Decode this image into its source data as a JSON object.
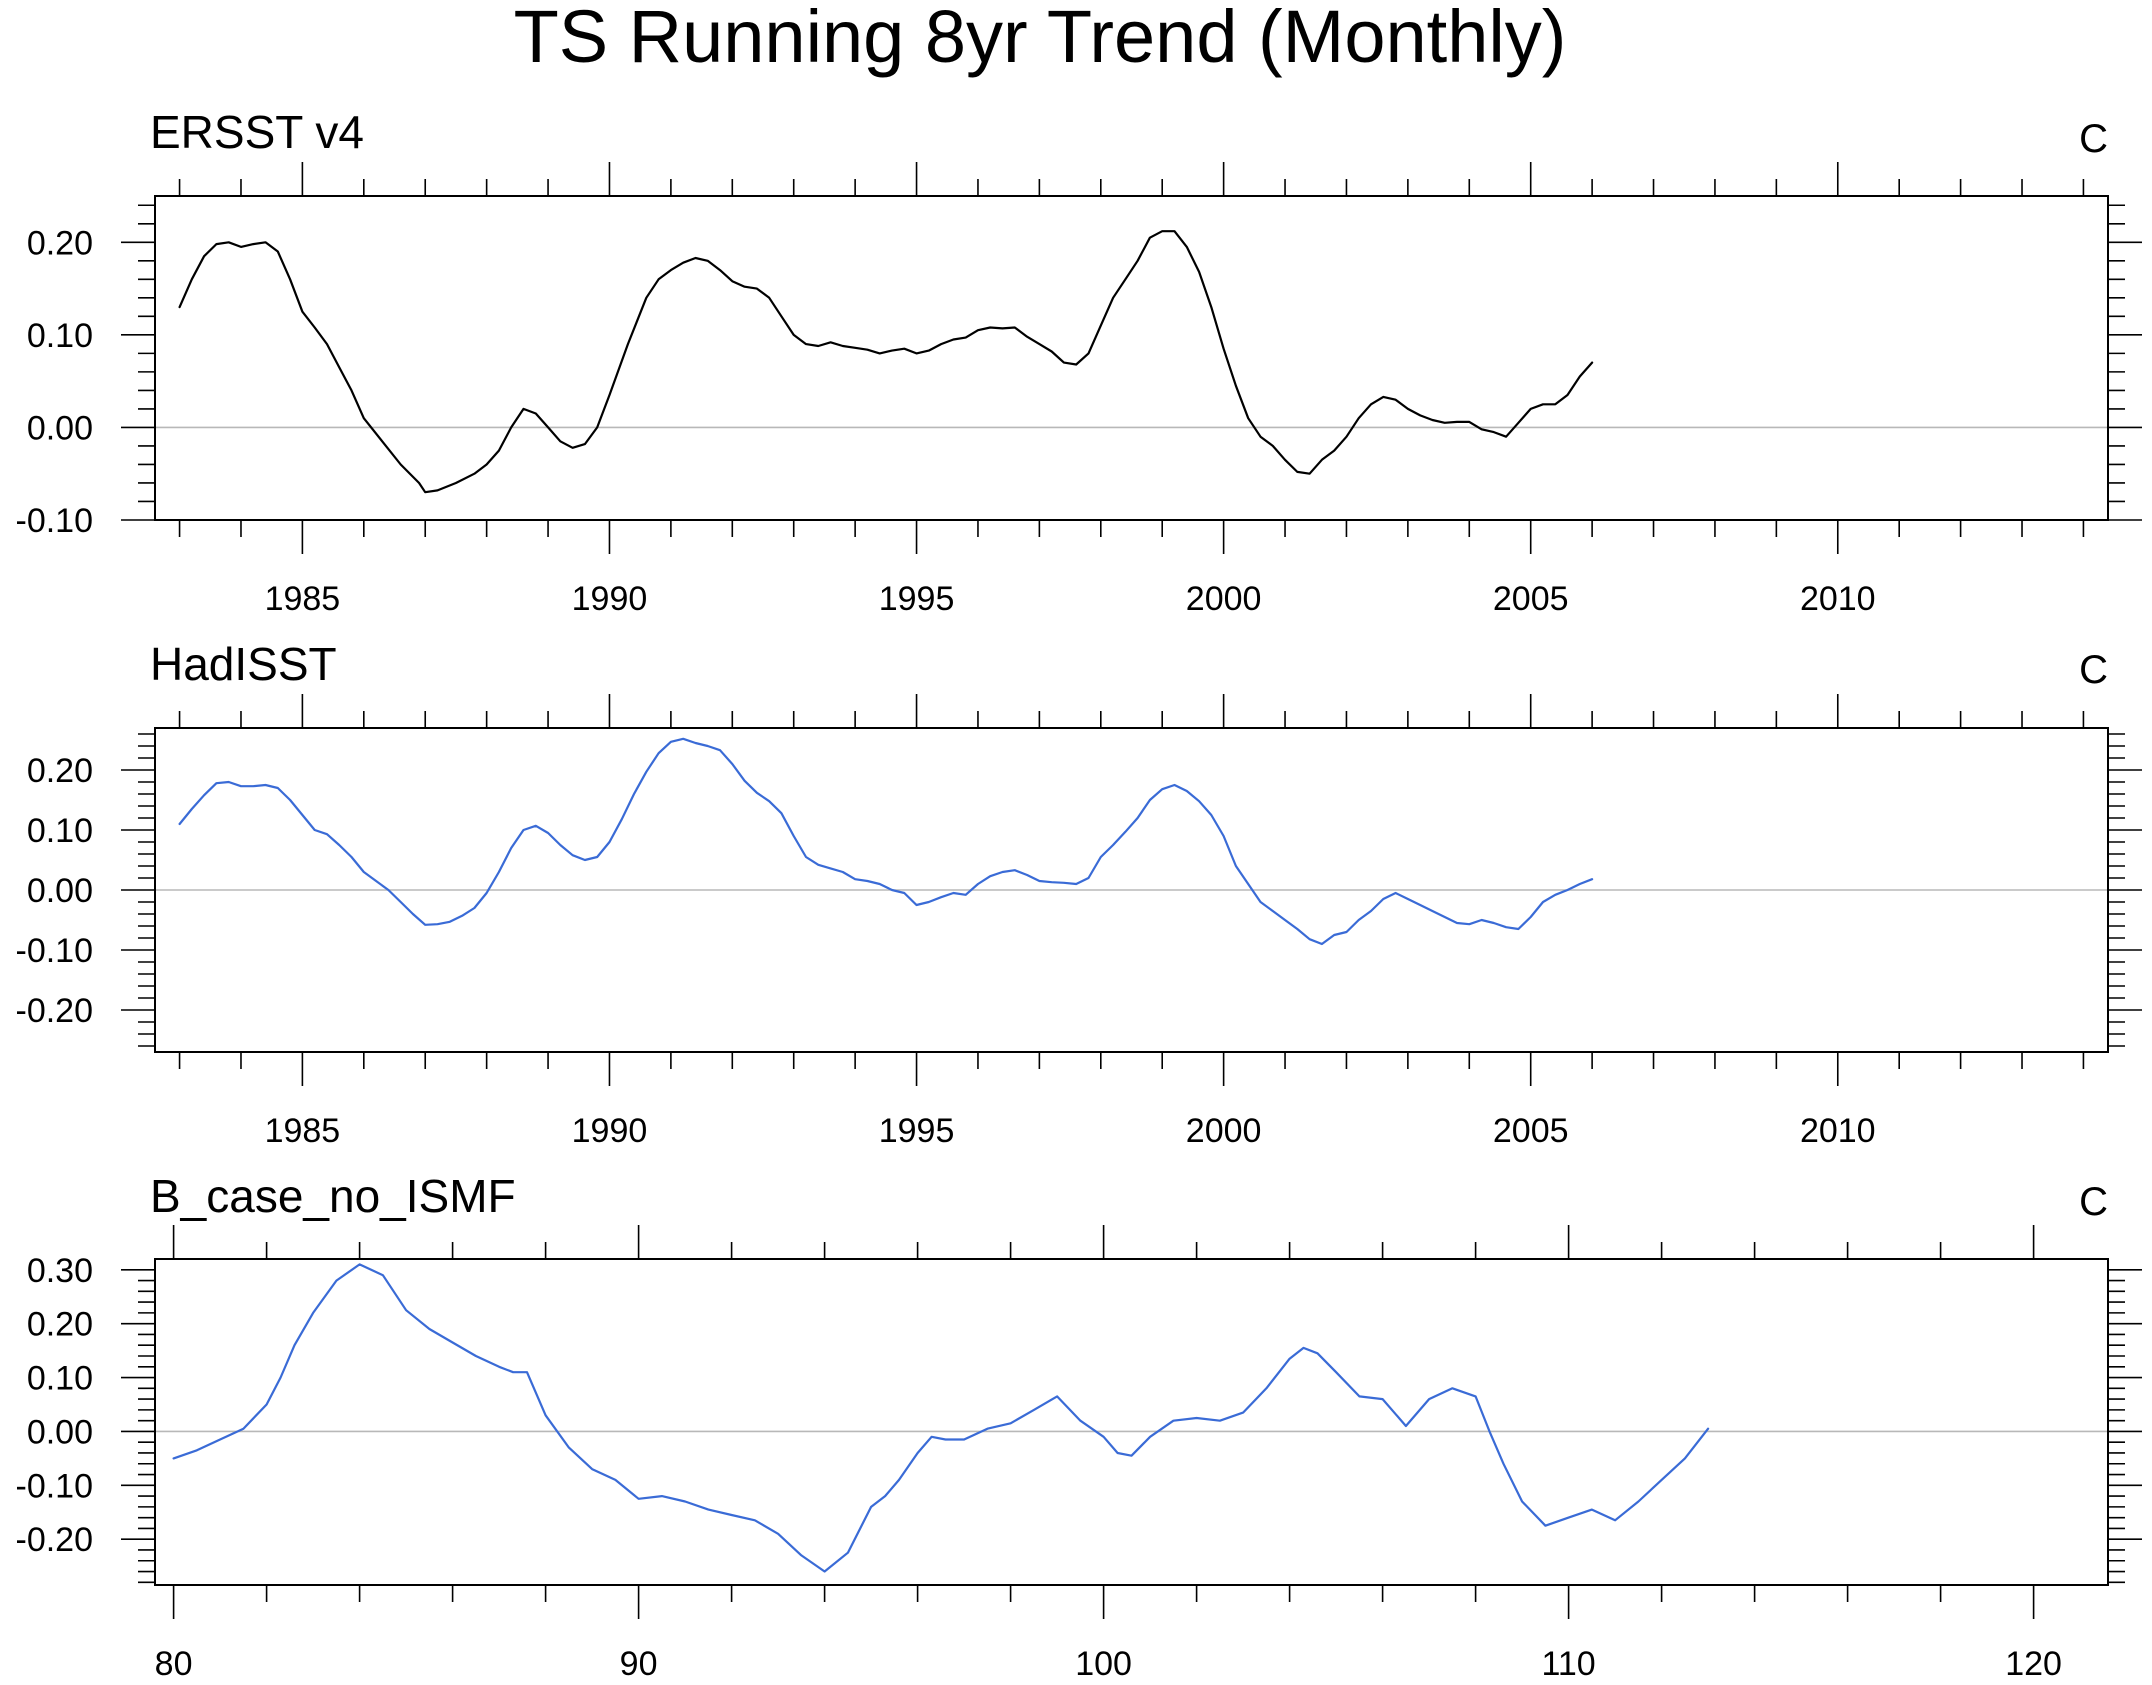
{
  "title": "TS Running 8yr Trend (Monthly)",
  "chart_data": [
    {
      "type": "line",
      "title": "ERSST v4",
      "units": "C",
      "xlim": [
        1982.6,
        2014.4
      ],
      "ylim": [
        -0.1,
        0.25
      ],
      "xticks": [
        1985,
        1990,
        1995,
        2000,
        2005,
        2010
      ],
      "xtick_labels": [
        "1985",
        "1990",
        "1995",
        "2000",
        "2005",
        "2010"
      ],
      "xminor": [
        1983,
        1984,
        1986,
        1987,
        1988,
        1989,
        1991,
        1992,
        1993,
        1994,
        1996,
        1997,
        1998,
        1999,
        2001,
        2002,
        2003,
        2004,
        2006,
        2007,
        2008,
        2009,
        2011,
        2012,
        2013,
        2014
      ],
      "yticks": [
        -0.1,
        0.0,
        0.1,
        0.2
      ],
      "ytick_labels": [
        "-0.10",
        "0.00",
        "0.10",
        "0.20"
      ],
      "yminor": [
        -0.08,
        -0.06,
        -0.04,
        -0.02,
        0.02,
        0.04,
        0.06,
        0.08,
        0.12,
        0.14,
        0.16,
        0.18,
        0.22,
        0.24
      ],
      "grid": false,
      "reference_line": 0,
      "series": [
        {
          "color": "#000000",
          "x": [
            1983.0,
            1983.2,
            1983.4,
            1983.6,
            1983.8,
            1984.0,
            1984.2,
            1984.4,
            1984.6,
            1984.8,
            1985.0,
            1985.2,
            1985.4,
            1985.6,
            1985.8,
            1986.0,
            1986.3,
            1986.6,
            1986.9,
            1987.0,
            1987.2,
            1987.5,
            1987.8,
            1988.0,
            1988.2,
            1988.4,
            1988.6,
            1988.8,
            1989.0,
            1989.2,
            1989.4,
            1989.6,
            1989.8,
            1990.0,
            1990.3,
            1990.6,
            1990.8,
            1991.0,
            1991.2,
            1991.4,
            1991.6,
            1991.8,
            1992.0,
            1992.2,
            1992.4,
            1992.6,
            1992.8,
            1993.0,
            1993.2,
            1993.4,
            1993.6,
            1993.8,
            1994.0,
            1994.2,
            1994.4,
            1994.6,
            1994.8,
            1995.0,
            1995.2,
            1995.4,
            1995.6,
            1995.8,
            1996.0,
            1996.2,
            1996.4,
            1996.6,
            1996.8,
            1997.0,
            1997.2,
            1997.4,
            1997.6,
            1997.8,
            1998.0,
            1998.2,
            1998.4,
            1998.6,
            1998.8,
            1999.0,
            1999.2,
            1999.4,
            1999.6,
            1999.8,
            2000.0,
            2000.2,
            2000.4,
            2000.6,
            2000.8,
            2001.0,
            2001.2,
            2001.4,
            2001.6,
            2001.8,
            2002.0,
            2002.2,
            2002.4,
            2002.6,
            2002.8,
            2003.0,
            2003.2,
            2003.4,
            2003.6,
            2003.8,
            2004.0,
            2004.2,
            2004.4,
            2004.6,
            2004.8,
            2005.0,
            2005.2,
            2005.4,
            2005.6,
            2005.8,
            2006.0
          ],
          "y": [
            0.13,
            0.16,
            0.185,
            0.198,
            0.2,
            0.195,
            0.198,
            0.2,
            0.19,
            0.16,
            0.125,
            0.108,
            0.09,
            0.065,
            0.04,
            0.01,
            -0.015,
            -0.04,
            -0.06,
            -0.07,
            -0.068,
            -0.06,
            -0.05,
            -0.04,
            -0.025,
            0.0,
            0.02,
            0.015,
            0.0,
            -0.015,
            -0.022,
            -0.018,
            0.0,
            0.035,
            0.09,
            0.14,
            0.16,
            0.17,
            0.178,
            0.183,
            0.18,
            0.17,
            0.158,
            0.152,
            0.15,
            0.14,
            0.12,
            0.1,
            0.09,
            0.088,
            0.092,
            0.088,
            0.086,
            0.084,
            0.08,
            0.083,
            0.085,
            0.08,
            0.083,
            0.09,
            0.095,
            0.097,
            0.105,
            0.108,
            0.107,
            0.108,
            0.098,
            0.09,
            0.082,
            0.07,
            0.068,
            0.08,
            0.11,
            0.14,
            0.16,
            0.18,
            0.205,
            0.212,
            0.212,
            0.195,
            0.168,
            0.13,
            0.085,
            0.045,
            0.01,
            -0.01,
            -0.02,
            -0.035,
            -0.048,
            -0.05,
            -0.035,
            -0.025,
            -0.01,
            0.01,
            0.025,
            0.033,
            0.03,
            0.02,
            0.013,
            0.008,
            0.005,
            0.006,
            0.006,
            -0.002,
            -0.005,
            -0.01,
            0.005,
            0.02,
            0.025,
            0.025,
            0.035,
            0.055,
            0.07
          ]
        }
      ]
    },
    {
      "type": "line",
      "title": "HadISST",
      "units": "C",
      "xlim": [
        1982.6,
        2014.4
      ],
      "ylim": [
        -0.27,
        0.27
      ],
      "xticks": [
        1985,
        1990,
        1995,
        2000,
        2005,
        2010
      ],
      "xtick_labels": [
        "1985",
        "1990",
        "1995",
        "2000",
        "2005",
        "2010"
      ],
      "xminor": [
        1983,
        1984,
        1986,
        1987,
        1988,
        1989,
        1991,
        1992,
        1993,
        1994,
        1996,
        1997,
        1998,
        1999,
        2001,
        2002,
        2003,
        2004,
        2006,
        2007,
        2008,
        2009,
        2011,
        2012,
        2013,
        2014
      ],
      "yticks": [
        -0.2,
        -0.1,
        0.0,
        0.1,
        0.2
      ],
      "ytick_labels": [
        "-0.20",
        "-0.10",
        "0.00",
        "0.10",
        "0.20"
      ],
      "yminor": [
        -0.26,
        -0.24,
        -0.22,
        -0.18,
        -0.16,
        -0.14,
        -0.12,
        -0.08,
        -0.06,
        -0.04,
        -0.02,
        0.02,
        0.04,
        0.06,
        0.08,
        0.12,
        0.14,
        0.16,
        0.18,
        0.22,
        0.24,
        0.26
      ],
      "grid": false,
      "reference_line": 0,
      "series": [
        {
          "color": "#3a6bd6",
          "x": [
            1983.0,
            1983.2,
            1983.4,
            1983.6,
            1983.8,
            1984.0,
            1984.2,
            1984.4,
            1984.6,
            1984.8,
            1985.0,
            1985.2,
            1985.4,
            1985.6,
            1985.8,
            1986.0,
            1986.2,
            1986.4,
            1986.6,
            1986.8,
            1987.0,
            1987.2,
            1987.4,
            1987.6,
            1987.8,
            1988.0,
            1988.2,
            1988.4,
            1988.6,
            1988.8,
            1989.0,
            1989.2,
            1989.4,
            1989.6,
            1989.8,
            1990.0,
            1990.2,
            1990.4,
            1990.6,
            1990.8,
            1991.0,
            1991.2,
            1991.4,
            1991.6,
            1991.8,
            1992.0,
            1992.2,
            1992.4,
            1992.6,
            1992.8,
            1993.0,
            1993.2,
            1993.4,
            1993.6,
            1993.8,
            1994.0,
            1994.2,
            1994.4,
            1994.6,
            1994.8,
            1995.0,
            1995.2,
            1995.4,
            1995.6,
            1995.8,
            1996.0,
            1996.2,
            1996.4,
            1996.6,
            1996.8,
            1997.0,
            1997.2,
            1997.4,
            1997.6,
            1997.8,
            1998.0,
            1998.2,
            1998.4,
            1998.6,
            1998.8,
            1999.0,
            1999.2,
            1999.4,
            1999.6,
            1999.8,
            2000.0,
            2000.2,
            2000.4,
            2000.6,
            2000.8,
            2001.0,
            2001.2,
            2001.4,
            2001.6,
            2001.8,
            2002.0,
            2002.2,
            2002.4,
            2002.6,
            2002.8,
            2003.0,
            2003.2,
            2003.4,
            2003.6,
            2003.8,
            2004.0,
            2004.2,
            2004.4,
            2004.6,
            2004.8,
            2005.0,
            2005.2,
            2005.4,
            2005.6,
            2005.8,
            2006.0
          ],
          "y": [
            0.11,
            0.135,
            0.158,
            0.178,
            0.18,
            0.173,
            0.173,
            0.175,
            0.17,
            0.15,
            0.125,
            0.1,
            0.093,
            0.075,
            0.055,
            0.03,
            0.015,
            0.0,
            -0.02,
            -0.04,
            -0.058,
            -0.057,
            -0.053,
            -0.043,
            -0.03,
            -0.005,
            0.03,
            0.07,
            0.1,
            0.107,
            0.095,
            0.075,
            0.058,
            0.05,
            0.055,
            0.08,
            0.118,
            0.16,
            0.197,
            0.228,
            0.247,
            0.252,
            0.245,
            0.24,
            0.233,
            0.21,
            0.182,
            0.162,
            0.148,
            0.128,
            0.09,
            0.055,
            0.042,
            0.036,
            0.03,
            0.018,
            0.015,
            0.01,
            0.0,
            -0.005,
            -0.025,
            -0.02,
            -0.012,
            -0.005,
            -0.008,
            0.01,
            0.023,
            0.03,
            0.033,
            0.025,
            0.015,
            0.013,
            0.012,
            0.01,
            0.02,
            0.055,
            0.075,
            0.097,
            0.12,
            0.15,
            0.168,
            0.175,
            0.165,
            0.148,
            0.125,
            0.09,
            0.04,
            0.01,
            -0.02,
            -0.035,
            -0.05,
            -0.065,
            -0.082,
            -0.09,
            -0.075,
            -0.07,
            -0.05,
            -0.035,
            -0.015,
            -0.005,
            -0.015,
            -0.025,
            -0.035,
            -0.045,
            -0.055,
            -0.057,
            -0.05,
            -0.055,
            -0.062,
            -0.065,
            -0.045,
            -0.02,
            -0.008,
            0.0,
            0.01,
            0.018
          ]
        }
      ]
    },
    {
      "type": "line",
      "title": "B_case_no_ISMF",
      "units": "C",
      "xlim": [
        79.6,
        121.6
      ],
      "ylim": [
        -0.285,
        0.32
      ],
      "xticks": [
        80,
        90,
        100,
        110,
        120
      ],
      "xtick_labels": [
        "80",
        "90",
        "100",
        "110",
        "120"
      ],
      "xminor": [
        82,
        84,
        86,
        88,
        92,
        94,
        96,
        98,
        102,
        104,
        106,
        108,
        112,
        114,
        116,
        118
      ],
      "yticks": [
        -0.2,
        -0.1,
        0.0,
        0.1,
        0.2,
        0.3
      ],
      "ytick_labels": [
        "-0.20",
        "-0.10",
        "0.00",
        "0.10",
        "0.20",
        "0.30"
      ],
      "yminor": [
        -0.28,
        -0.26,
        -0.24,
        -0.22,
        -0.18,
        -0.16,
        -0.14,
        -0.12,
        -0.08,
        -0.06,
        -0.04,
        -0.02,
        0.02,
        0.04,
        0.06,
        0.08,
        0.12,
        0.14,
        0.16,
        0.18,
        0.22,
        0.24,
        0.26,
        0.28
      ],
      "grid": false,
      "reference_line": 0,
      "series": [
        {
          "color": "#3a6bd6",
          "x": [
            80.0,
            80.5,
            81.0,
            81.5,
            82.0,
            82.3,
            82.6,
            83.0,
            83.5,
            84.0,
            84.5,
            85.0,
            85.5,
            86.0,
            86.5,
            87.0,
            87.3,
            87.6,
            88.0,
            88.5,
            89.0,
            89.5,
            90.0,
            90.5,
            91.0,
            91.5,
            92.0,
            92.5,
            93.0,
            93.5,
            94.0,
            94.5,
            95.0,
            95.3,
            95.6,
            96.0,
            96.3,
            96.6,
            97.0,
            97.5,
            98.0,
            98.5,
            99.0,
            99.5,
            100.0,
            100.3,
            100.6,
            101.0,
            101.5,
            102.0,
            102.5,
            103.0,
            103.5,
            104.0,
            104.3,
            104.6,
            105.0,
            105.5,
            106.0,
            106.5,
            107.0,
            107.5,
            108.0,
            108.3,
            108.6,
            109.0,
            109.5,
            110.0,
            110.5,
            111.0,
            111.5,
            112.0,
            112.5,
            113.0
          ],
          "y": [
            -0.05,
            -0.035,
            -0.015,
            0.005,
            0.05,
            0.1,
            0.16,
            0.22,
            0.28,
            0.31,
            0.29,
            0.225,
            0.19,
            0.165,
            0.14,
            0.12,
            0.11,
            0.11,
            0.03,
            -0.03,
            -0.07,
            -0.09,
            -0.125,
            -0.12,
            -0.13,
            -0.145,
            -0.155,
            -0.165,
            -0.19,
            -0.23,
            -0.26,
            -0.225,
            -0.14,
            -0.12,
            -0.09,
            -0.04,
            -0.01,
            -0.015,
            -0.015,
            0.005,
            0.015,
            0.04,
            0.065,
            0.02,
            -0.01,
            -0.04,
            -0.045,
            -0.01,
            0.02,
            0.025,
            0.02,
            0.035,
            0.08,
            0.135,
            0.155,
            0.145,
            0.11,
            0.065,
            0.06,
            0.01,
            0.06,
            0.08,
            0.065,
            0.0,
            -0.06,
            -0.13,
            -0.175,
            -0.16,
            -0.145,
            -0.165,
            -0.13,
            -0.09,
            -0.05,
            0.005
          ]
        }
      ]
    }
  ]
}
